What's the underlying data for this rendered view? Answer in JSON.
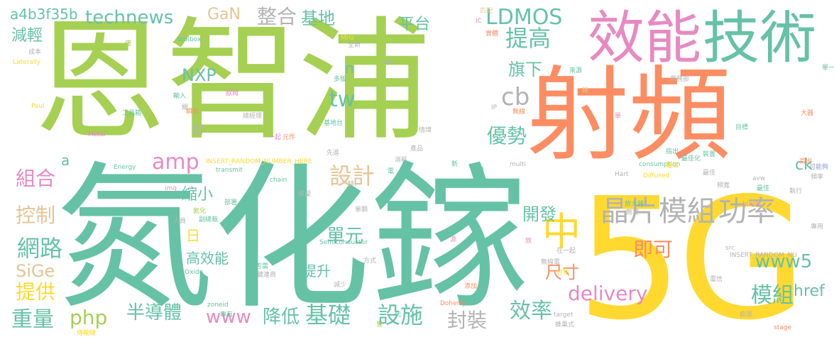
{
  "title": "word cloud",
  "palette": {
    "green": "#a5d052",
    "teal": "#66c2a5",
    "orange": "#fc8d62",
    "pink": "#e78ac3",
    "yellow": "#ffd92f",
    "tan": "#e5c494",
    "gray": "#b3b3b3",
    "blue": "#8da0cb"
  },
  "words": [
    "恩智浦",
    "氮化鎵",
    "射頻",
    "5G",
    "效能",
    "技術",
    "中",
    "晶片",
    "模組",
    "功率",
    "LDMOS",
    "提高",
    "整合",
    "technews",
    "基地",
    "平台",
    "a4b3f35b",
    "GaN",
    "旗下",
    "NXP",
    "減輕",
    "tw",
    "cb",
    "優勢",
    "amp",
    "設計",
    "台",
    "組合",
    "控制",
    "網路",
    "SiGe",
    "提供",
    "重量",
    "php",
    "半導體",
    "www",
    "降低",
    "基礎",
    "設施",
    "封裝",
    "效率",
    "delivery",
    "開發",
    "即可",
    "尺寸",
    "www5",
    "ck",
    "href",
    "模組",
    "縮小",
    "日",
    "高效能",
    "單元",
    "提升",
    "n",
    "a"
  ],
  "small_words": [
    "匹配",
    "IC",
    "監控",
    "僅",
    "toolbox",
    "MHz",
    "實體",
    "全新",
    "成本",
    "Laterally",
    "多版",
    "ohm",
    "輸入",
    "歐姆",
    "關",
    "瞬時",
    "來源",
    "業務部",
    "單一",
    "錄",
    "工具箱",
    "Paul",
    "總經理",
    "基地台",
    "情境",
    "無線",
    "Metal",
    "一起",
    "元件",
    "IP",
    "單",
    "大器",
    "目標",
    "產品",
    "Energy",
    "INSERT_RANDOM_NUMBER_HERE",
    "transmit",
    "電",
    "新",
    "先進",
    "消耗",
    "multi",
    "consumption",
    "採用",
    "最佳化",
    "指出",
    "高出",
    "可能夠",
    "裝置",
    "chain",
    "屬填",
    "Diffused",
    "模擬",
    "Hart",
    "最佳",
    "頻率",
    "img",
    "特",
    "最佳",
    "avw",
    "頻寬",
    "執行",
    "部署",
    "放大器",
    "blank",
    "氮化",
    "副總裁",
    "單顆",
    "無需",
    "人員",
    "Semiconductor",
    "源",
    "src",
    "專用",
    "放",
    "在一起",
    "INSERT_RANDOM_NU",
    "方式",
    "Oxide",
    "否需",
    "無線電",
    "包括",
    "鍵連商",
    "電信",
    "減少",
    "添加",
    "zoneid",
    "專有",
    "代",
    "Doherty",
    "target",
    "蜂巢式",
    "能源",
    "豐",
    "stage",
    "傳輸鏈",
    "輸出",
    "更",
    "專利",
    "GHz"
  ]
}
